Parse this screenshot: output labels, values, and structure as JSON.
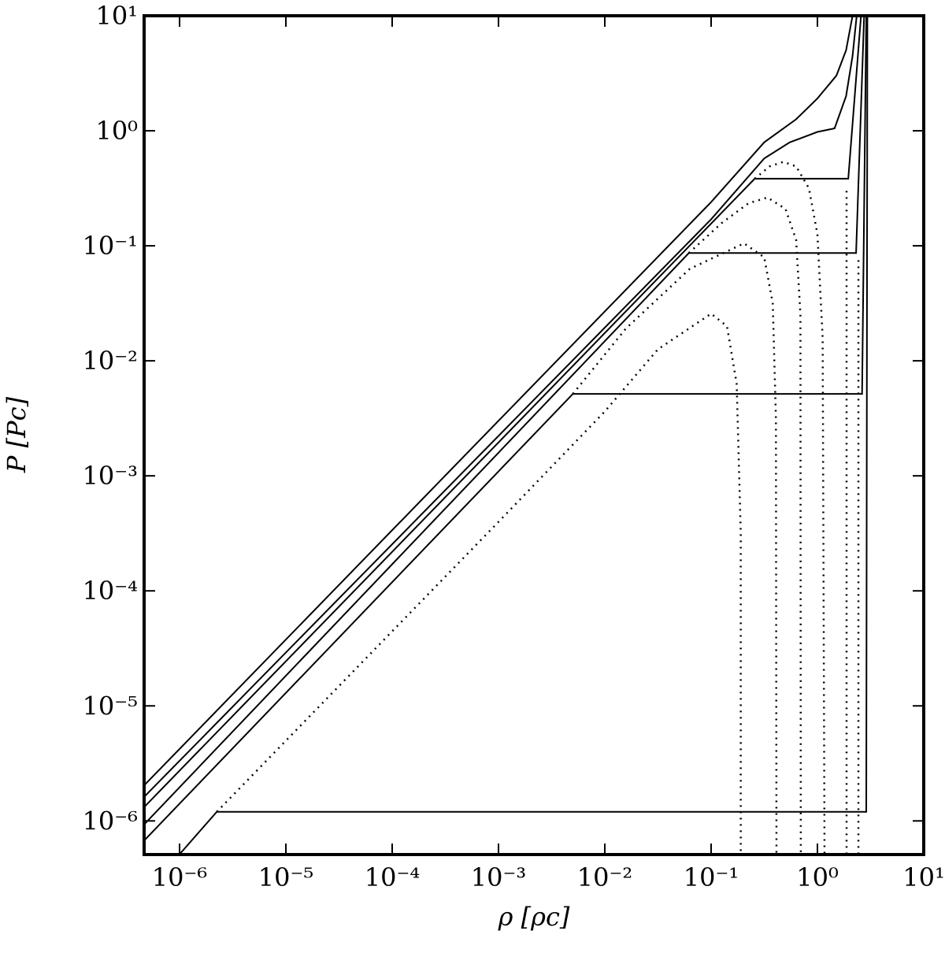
{
  "chart_data": {
    "type": "line",
    "xlabel": "ρ [ρc]",
    "ylabel": "P [Pc]",
    "xscale": "log",
    "yscale": "log",
    "xlim": [
      4.64e-07,
      10
    ],
    "ylim": [
      5.1e-07,
      10
    ],
    "xticks": [
      {
        "value": 1e-06,
        "label": "10⁻⁶"
      },
      {
        "value": 1e-05,
        "label": "10⁻⁵"
      },
      {
        "value": 0.0001,
        "label": "10⁻⁴"
      },
      {
        "value": 0.001,
        "label": "10⁻³"
      },
      {
        "value": 0.01,
        "label": "10⁻²"
      },
      {
        "value": 0.1,
        "label": "10⁻¹"
      },
      {
        "value": 1,
        "label": "10⁰"
      },
      {
        "value": 10,
        "label": "10¹"
      }
    ],
    "yticks": [
      {
        "value": 1e-06,
        "label": "10⁻⁶"
      },
      {
        "value": 1e-05,
        "label": "10⁻⁵"
      },
      {
        "value": 0.0001,
        "label": "10⁻⁴"
      },
      {
        "value": 0.001,
        "label": "10⁻³"
      },
      {
        "value": 0.01,
        "label": "10⁻²"
      },
      {
        "value": 0.1,
        "label": "10⁻¹"
      },
      {
        "value": 1,
        "label": "10⁰"
      },
      {
        "value": 10,
        "label": "10¹"
      }
    ],
    "series": [
      {
        "color": "#000000",
        "style": "solid",
        "x": [
          4.65e-07,
          0.1,
          0.316,
          0.631,
          1,
          1.51,
          1.86,
          2.14
        ],
        "values": [
          2.04e-06,
          0.24,
          0.794,
          1.26,
          1.91,
          3.02,
          5.01,
          10
        ]
      },
      {
        "color": "#000000",
        "style": "solid",
        "x": [
          4.65e-07,
          0.1,
          0.316,
          0.55,
          1,
          1.45,
          1.86,
          2.14,
          2.34
        ],
        "values": [
          1.62e-06,
          0.17,
          0.575,
          0.794,
          0.977,
          1.05,
          2.0,
          4.47,
          10
        ]
      },
      {
        "color": "#000000",
        "style": "solid",
        "x": [
          4.65e-07,
          0.257,
          1.95,
          2.57
        ],
        "values": [
          1.32e-06,
          0.383,
          0.383,
          10
        ]
      },
      {
        "color": "#000000",
        "style": "solid",
        "x": [
          4.65e-07,
          0.0617,
          2.31,
          2.75
        ],
        "values": [
          9.33e-07,
          0.0865,
          0.0865,
          10
        ]
      },
      {
        "color": "#000000",
        "style": "solid",
        "x": [
          4.65e-07,
          0.00501,
          2.63,
          2.88
        ],
        "values": [
          6.76e-07,
          0.00516,
          0.00516,
          10
        ]
      },
      {
        "color": "#000000",
        "style": "solid",
        "x": [
          1e-06,
          2.24e-06,
          2.88,
          2.95
        ],
        "values": [
          5.13e-07,
          1.2e-06,
          1.2e-06,
          10
        ]
      },
      {
        "color": "#000000",
        "style": "dotted",
        "x": [
          0.257,
          0.355,
          0.479,
          0.631,
          0.832,
          1.0,
          1.12,
          1.167,
          null,
          1.88,
          1.88
        ],
        "values": [
          0.383,
          0.49,
          0.537,
          0.49,
          0.316,
          0.126,
          0.0158,
          4e-07,
          null,
          4e-07,
          0.316
        ]
      },
      {
        "color": "#000000",
        "style": "dotted",
        "x": [
          0.0617,
          0.126,
          0.224,
          0.339,
          0.501,
          0.631,
          0.692,
          0.698,
          null,
          2.43,
          2.43
        ],
        "values": [
          0.0865,
          0.158,
          0.234,
          0.263,
          0.209,
          0.112,
          0.0251,
          4e-07,
          null,
          4e-07,
          0.0794
        ]
      },
      {
        "color": "#000000",
        "style": "dotted",
        "x": [
          0.00501,
          0.0158,
          0.0631,
          0.204,
          0.316,
          0.38,
          0.407,
          0.412
        ],
        "values": [
          0.00516,
          0.0191,
          0.0631,
          0.105,
          0.0794,
          0.0316,
          0.00316,
          4e-07
        ]
      },
      {
        "color": "#000000",
        "style": "dotted",
        "x": [
          2.24e-06,
          0.001,
          0.01,
          0.0316,
          0.1,
          0.141,
          0.174,
          0.19,
          0.19
        ],
        "values": [
          1.2e-06,
          0.000398,
          0.00363,
          0.0126,
          0.0257,
          0.02,
          0.00631,
          0.000316,
          4e-07
        ]
      }
    ]
  }
}
